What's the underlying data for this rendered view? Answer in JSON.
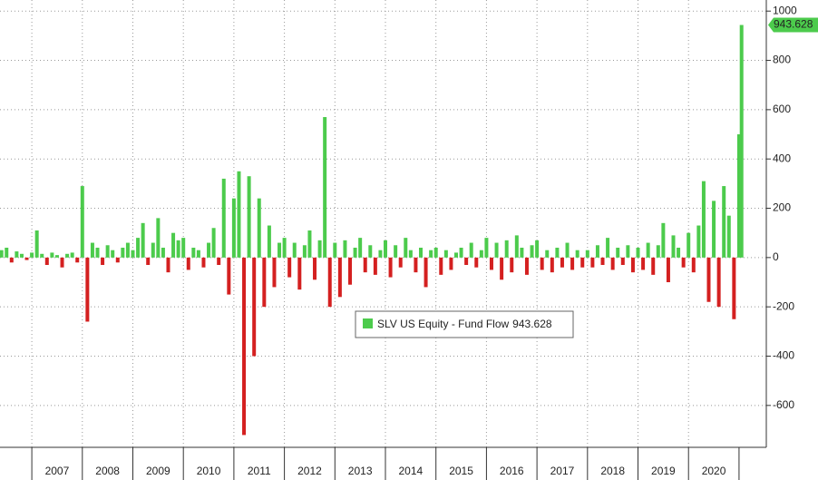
{
  "chart_data": {
    "type": "bar",
    "series": [
      {
        "name": "SLV US Equity - Fund Flow",
        "color": "#4ccb4c",
        "negative_color": "#d42020",
        "x": [
          2006.4,
          2006.5,
          2006.6,
          2006.7,
          2006.8,
          2006.9,
          2007.0,
          2007.1,
          2007.2,
          2007.3,
          2007.4,
          2007.5,
          2007.6,
          2007.7,
          2007.8,
          2007.9,
          2008.0,
          2008.1,
          2008.2,
          2008.3,
          2008.4,
          2008.5,
          2008.6,
          2008.7,
          2008.8,
          2008.9,
          2009.0,
          2009.1,
          2009.2,
          2009.3,
          2009.4,
          2009.5,
          2009.6,
          2009.7,
          2009.8,
          2009.9,
          2010.0,
          2010.1,
          2010.2,
          2010.3,
          2010.4,
          2010.5,
          2010.6,
          2010.7,
          2010.8,
          2010.9,
          2011.0,
          2011.1,
          2011.2,
          2011.3,
          2011.4,
          2011.5,
          2011.6,
          2011.7,
          2011.8,
          2011.9,
          2012.0,
          2012.1,
          2012.2,
          2012.3,
          2012.4,
          2012.5,
          2012.6,
          2012.7,
          2012.8,
          2012.9,
          2013.0,
          2013.1,
          2013.2,
          2013.3,
          2013.4,
          2013.5,
          2013.6,
          2013.7,
          2013.8,
          2013.9,
          2014.0,
          2014.1,
          2014.2,
          2014.3,
          2014.4,
          2014.5,
          2014.6,
          2014.7,
          2014.8,
          2014.9,
          2015.0,
          2015.1,
          2015.2,
          2015.3,
          2015.4,
          2015.5,
          2015.6,
          2015.7,
          2015.8,
          2015.9,
          2016.0,
          2016.1,
          2016.2,
          2016.3,
          2016.4,
          2016.5,
          2016.6,
          2016.7,
          2016.8,
          2016.9,
          2017.0,
          2017.1,
          2017.2,
          2017.3,
          2017.4,
          2017.5,
          2017.6,
          2017.7,
          2017.8,
          2017.9,
          2018.0,
          2018.1,
          2018.2,
          2018.3,
          2018.4,
          2018.5,
          2018.6,
          2018.7,
          2018.8,
          2018.9,
          2019.0,
          2019.1,
          2019.2,
          2019.3,
          2019.4,
          2019.5,
          2019.6,
          2019.7,
          2019.8,
          2019.9,
          2020.0,
          2020.1,
          2020.2,
          2020.3,
          2020.4,
          2020.5,
          2020.6,
          2020.7,
          2020.8,
          2020.9,
          2021.0,
          2021.05
        ],
        "values": [
          30,
          40,
          -20,
          25,
          15,
          -10,
          20,
          110,
          15,
          -30,
          20,
          10,
          -40,
          15,
          20,
          -20,
          290,
          -260,
          60,
          40,
          -30,
          50,
          30,
          -20,
          40,
          60,
          30,
          80,
          140,
          -30,
          60,
          160,
          40,
          -60,
          100,
          70,
          80,
          -50,
          40,
          30,
          -40,
          60,
          120,
          -30,
          320,
          -150,
          240,
          350,
          -720,
          330,
          -400,
          240,
          -200,
          130,
          -120,
          60,
          80,
          -80,
          60,
          -130,
          50,
          110,
          -90,
          70,
          570,
          -200,
          60,
          -160,
          70,
          -110,
          40,
          80,
          -60,
          50,
          -70,
          30,
          70,
          -80,
          50,
          -40,
          80,
          30,
          -60,
          40,
          -120,
          30,
          40,
          -70,
          30,
          -50,
          20,
          40,
          -30,
          60,
          -40,
          30,
          80,
          -50,
          60,
          -90,
          70,
          -60,
          90,
          40,
          -70,
          50,
          70,
          -50,
          30,
          -60,
          40,
          -40,
          60,
          -50,
          30,
          -40,
          30,
          -40,
          50,
          -30,
          80,
          -50,
          40,
          -30,
          50,
          -60,
          40,
          -50,
          60,
          -70,
          50,
          140,
          -100,
          90,
          40,
          -40,
          100,
          -60,
          130,
          310,
          -180,
          230,
          -200,
          290,
          170,
          -250,
          500,
          943.628
        ]
      }
    ],
    "xlim": [
      2006.37,
      2021.54
    ],
    "xticks": [
      2007,
      2008,
      2009,
      2010,
      2011,
      2012,
      2013,
      2014,
      2015,
      2016,
      2017,
      2018,
      2019,
      2020
    ],
    "ylim": [
      -770,
      1045
    ],
    "yticks": [
      1000,
      800,
      600,
      400,
      200,
      0,
      -200,
      -400,
      -600
    ],
    "grid": true
  }
}
